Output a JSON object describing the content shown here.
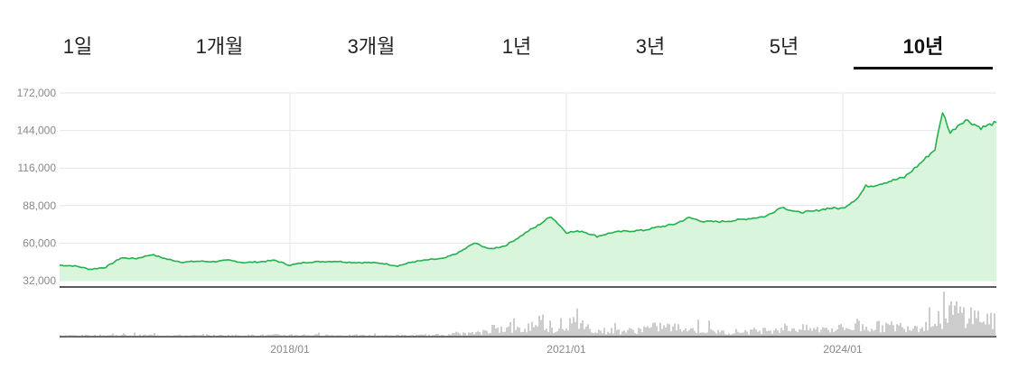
{
  "tabs": [
    {
      "label": "1일",
      "active": false
    },
    {
      "label": "1개월",
      "active": false
    },
    {
      "label": "3개월",
      "active": false
    },
    {
      "label": "1년",
      "active": false
    },
    {
      "label": "3년",
      "active": false
    },
    {
      "label": "5년",
      "active": false
    },
    {
      "label": "10년",
      "active": true
    }
  ],
  "colors": {
    "line": "#22b14c",
    "fill": "#d9f5dc",
    "grid": "#e6e6e6",
    "volume": "#9a9a9a",
    "axis": "#222222"
  },
  "chart_data": {
    "type": "area",
    "title": "",
    "xlabel": "",
    "ylabel": "",
    "ylim": [
      32000,
      172000
    ],
    "yticks": [
      172000,
      144000,
      116000,
      88000,
      60000,
      32000
    ],
    "ytick_labels": [
      "172,000",
      "144,000",
      "116,000",
      "88,000",
      "60,000",
      "32,000"
    ],
    "xticks": [
      "2018/01",
      "2021/01",
      "2024/01"
    ],
    "xlim": [
      "2015/07",
      "2025/09"
    ],
    "grid": true,
    "legend": "none",
    "series": [
      {
        "x": [
          "2015/07",
          "2015/09",
          "2015/11",
          "2016/01",
          "2016/03",
          "2016/05",
          "2016/07",
          "2016/09",
          "2016/11",
          "2017/01",
          "2017/03",
          "2017/05",
          "2017/07",
          "2017/09",
          "2017/11",
          "2018/01",
          "2018/03",
          "2018/05",
          "2018/07",
          "2018/09",
          "2018/11",
          "2019/01",
          "2019/03",
          "2019/05",
          "2019/07",
          "2019/09",
          "2019/11",
          "2020/01",
          "2020/02",
          "2020/03",
          "2020/05",
          "2020/07",
          "2020/08",
          "2020/09",
          "2020/11",
          "2021/01",
          "2021/03",
          "2021/05",
          "2021/07",
          "2021/09",
          "2021/11",
          "2022/01",
          "2022/03",
          "2022/05",
          "2022/07",
          "2022/09",
          "2022/11",
          "2023/01",
          "2023/03",
          "2023/05",
          "2023/07",
          "2023/09",
          "2023/11",
          "2024/01",
          "2024/03",
          "2024/04",
          "2024/05",
          "2024/07",
          "2024/09",
          "2024/10",
          "2024/11",
          "2025/01",
          "2025/02",
          "2025/03",
          "2025/04",
          "2025/05",
          "2025/07",
          "2025/09"
        ],
        "values": [
          43500,
          43000,
          40500,
          42000,
          49000,
          48500,
          51500,
          48000,
          45800,
          46500,
          46200,
          47200,
          45500,
          46000,
          47200,
          43500,
          45700,
          46200,
          46500,
          45600,
          45500,
          45000,
          43000,
          46000,
          47500,
          48500,
          53000,
          60000,
          58000,
          55500,
          58000,
          65000,
          69000,
          72000,
          80000,
          68000,
          69000,
          65000,
          68000,
          69000,
          69500,
          72000,
          74000,
          79000,
          76000,
          76000,
          77000,
          78500,
          80000,
          87000,
          83000,
          83500,
          86000,
          86000,
          94000,
          102500,
          103000,
          106000,
          109000,
          114000,
          119000,
          130000,
          158000,
          142000,
          148000,
          152000,
          146000,
          150000
        ]
      }
    ],
    "volume": {
      "note": "relative trading volume, 0-1 scale",
      "x": [
        "2015/07",
        "2016/01",
        "2016/07",
        "2017/01",
        "2017/07",
        "2018/01",
        "2018/07",
        "2019/01",
        "2019/07",
        "2020/01",
        "2020/03",
        "2020/07",
        "2020/09",
        "2020/11",
        "2021/01",
        "2021/05",
        "2021/09",
        "2022/01",
        "2022/05",
        "2022/09",
        "2023/01",
        "2023/05",
        "2023/09",
        "2024/01",
        "2024/05",
        "2024/09",
        "2025/01",
        "2025/02",
        "2025/03",
        "2025/05",
        "2025/07",
        "2025/09"
      ],
      "values": [
        0.04,
        0.05,
        0.05,
        0.04,
        0.05,
        0.06,
        0.05,
        0.04,
        0.05,
        0.12,
        0.3,
        0.22,
        0.55,
        0.25,
        0.45,
        0.2,
        0.2,
        0.35,
        0.25,
        0.15,
        0.2,
        0.3,
        0.25,
        0.3,
        0.35,
        0.35,
        0.45,
        1.0,
        0.85,
        0.75,
        0.6,
        0.45
      ]
    }
  }
}
